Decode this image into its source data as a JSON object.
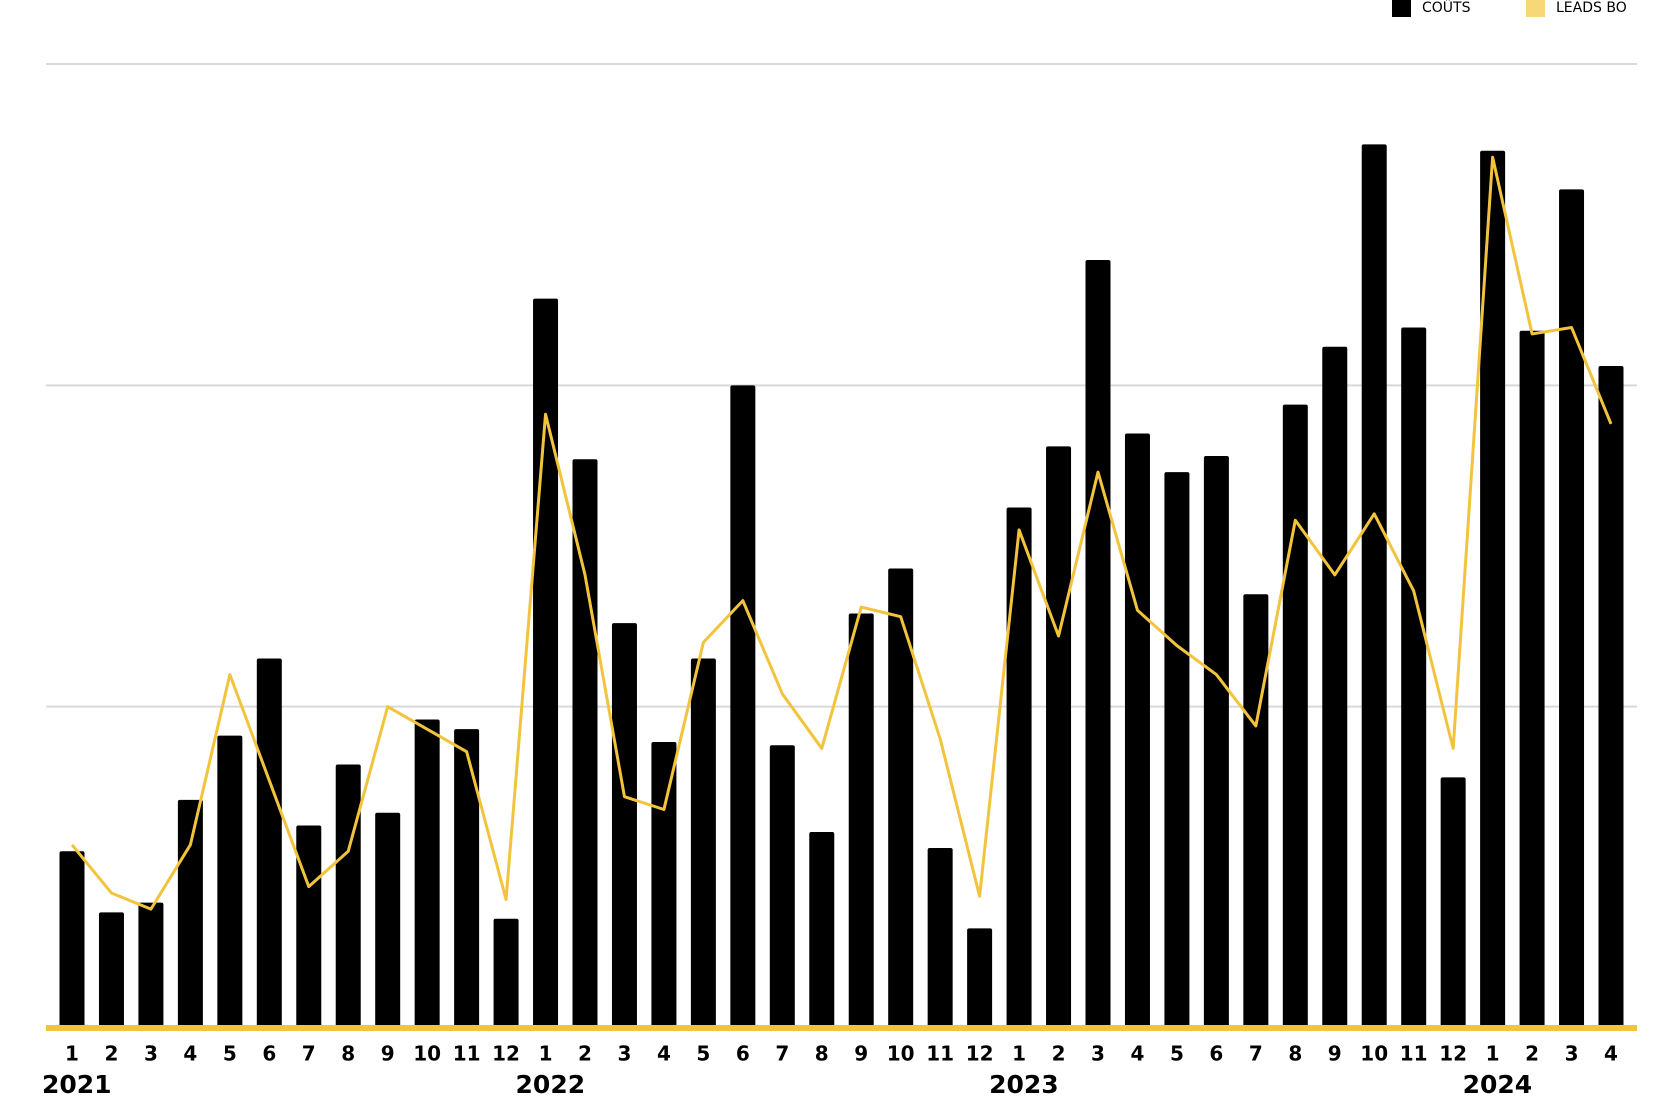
{
  "chart_data": {
    "type": "bar-line",
    "categories": [
      "1",
      "2",
      "3",
      "4",
      "5",
      "6",
      "7",
      "8",
      "9",
      "10",
      "11",
      "12",
      "1",
      "2",
      "3",
      "4",
      "5",
      "6",
      "7",
      "8",
      "9",
      "10",
      "11",
      "12",
      "1",
      "2",
      "3",
      "4",
      "5",
      "6",
      "7",
      "8",
      "9",
      "10",
      "11",
      "12",
      "1",
      "2",
      "3",
      "4"
    ],
    "year_labels": [
      "2021",
      null,
      null,
      null,
      null,
      null,
      null,
      null,
      null,
      null,
      null,
      null,
      "2022",
      null,
      null,
      null,
      null,
      null,
      null,
      null,
      null,
      null,
      null,
      null,
      "2023",
      null,
      null,
      null,
      null,
      null,
      null,
      null,
      null,
      null,
      null,
      null,
      "2024",
      null,
      null,
      null
    ],
    "series": [
      {
        "name": "COÛTS",
        "type": "bar",
        "color": "#000000",
        "values": [
          0.55,
          0.36,
          0.39,
          0.71,
          0.91,
          1.15,
          0.63,
          0.82,
          0.67,
          0.96,
          0.93,
          0.34,
          2.27,
          1.77,
          1.26,
          0.89,
          1.15,
          2.0,
          0.88,
          0.61,
          1.29,
          1.43,
          0.56,
          0.31,
          1.62,
          1.81,
          2.39,
          1.85,
          1.73,
          1.78,
          1.35,
          1.94,
          2.12,
          2.75,
          2.18,
          0.78,
          2.73,
          2.17,
          2.61,
          2.06
        ]
      },
      {
        "name": "LEADS BO",
        "type": "line",
        "color": "#f2c43d",
        "values": [
          0.57,
          0.42,
          0.37,
          0.57,
          1.1,
          0.77,
          0.44,
          0.55,
          1.0,
          0.93,
          0.86,
          0.4,
          1.91,
          1.41,
          0.72,
          0.68,
          1.2,
          1.33,
          1.04,
          0.87,
          1.31,
          1.28,
          0.9,
          0.41,
          1.55,
          1.22,
          1.73,
          1.3,
          1.19,
          1.1,
          0.94,
          1.58,
          1.41,
          1.6,
          1.36,
          0.87,
          2.71,
          2.16,
          2.18,
          1.88
        ]
      }
    ],
    "ylim": [
      0,
      3
    ],
    "yticks": [
      0,
      1,
      2,
      3
    ],
    "grid": true,
    "legend": "top-right"
  }
}
